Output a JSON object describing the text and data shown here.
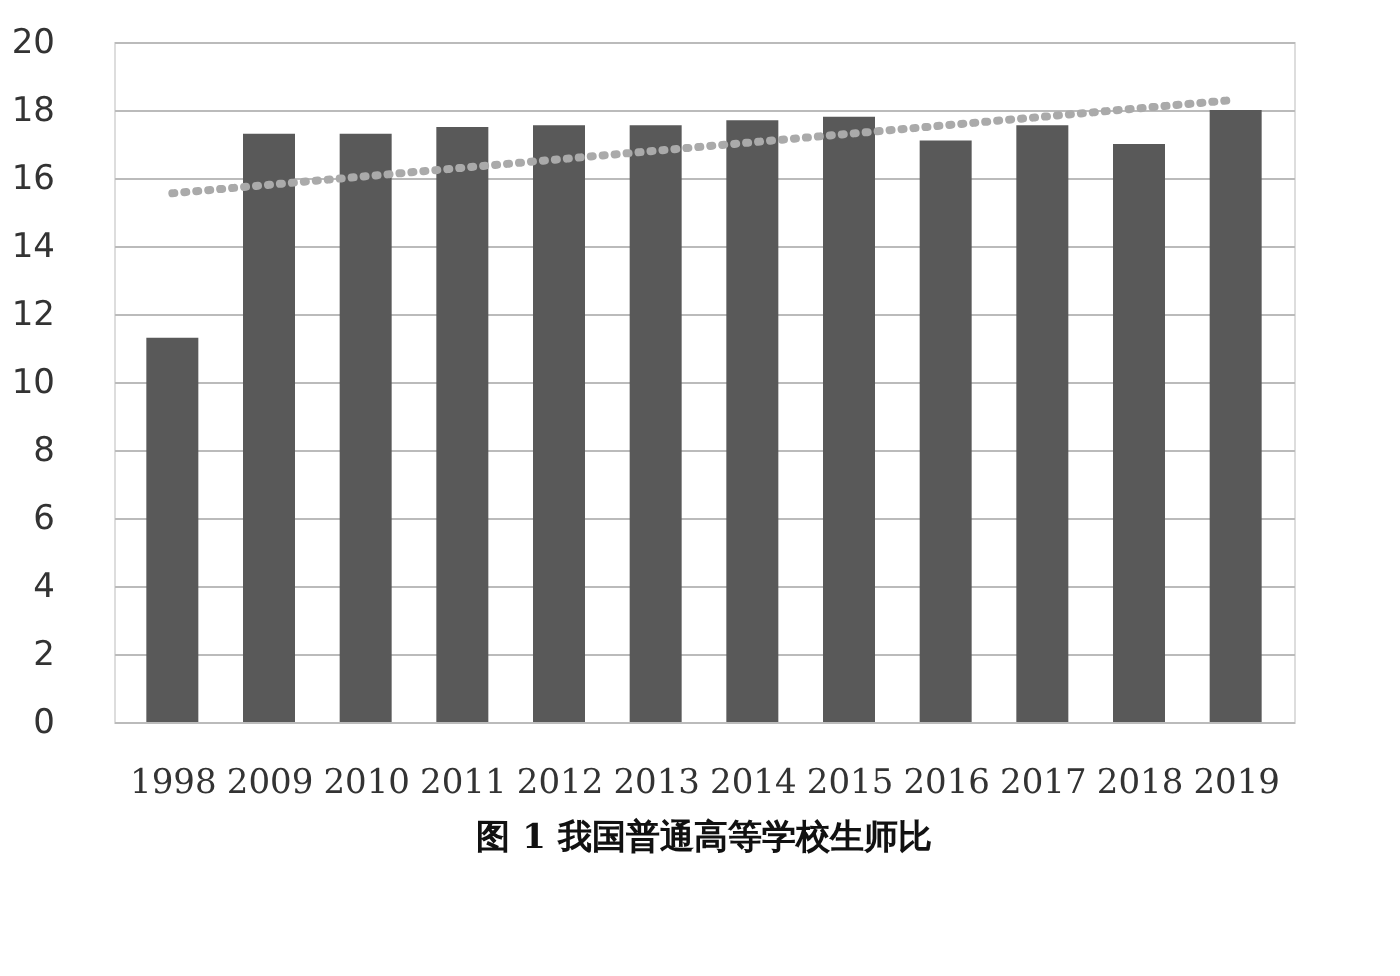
{
  "chart_data": {
    "type": "bar",
    "title": "图 1  我国普通高等学校生师比",
    "categories": [
      "1998",
      "2009",
      "2010",
      "2011",
      "2012",
      "2013",
      "2014",
      "2015",
      "2016",
      "2017",
      "2018",
      "2019"
    ],
    "series": [
      {
        "color": "#595959",
        "values": [
          11.3,
          17.3,
          17.3,
          17.5,
          17.55,
          17.55,
          17.7,
          17.8,
          17.1,
          17.55,
          17.0,
          18.0
        ]
      },
      {
        "type": "line",
        "color": "#aaaaaa",
        "line_style": "dotted",
        "values": [
          15.55,
          15.8,
          16.05,
          16.3,
          16.55,
          16.8,
          17.05,
          17.3,
          17.55,
          17.8,
          18.05,
          18.3
        ]
      }
    ],
    "ylim": [
      0,
      20
    ],
    "yticks": [
      0,
      2,
      4,
      6,
      8,
      10,
      12,
      14,
      16,
      18,
      20
    ],
    "grid": "y"
  }
}
